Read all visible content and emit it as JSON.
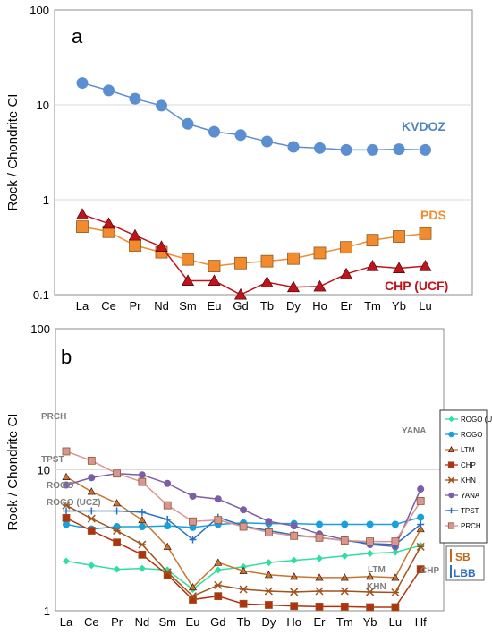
{
  "chart_data": [
    {
      "type": "line",
      "panel_label": "a",
      "ylabel": "Rock / Chondrite CI",
      "yscale": "log",
      "ylim": [
        0.1,
        100
      ],
      "yticks": [
        "0.1",
        "1",
        "10",
        "100"
      ],
      "grid": true,
      "categories": [
        "La",
        "Ce",
        "Pr",
        "Nd",
        "Sm",
        "Eu",
        "Gd",
        "Tb",
        "Dy",
        "Ho",
        "Er",
        "Tm",
        "Yb",
        "Lu"
      ],
      "series": [
        {
          "name": "KVDOZ",
          "color": "#5b8fd1",
          "marker": "circle",
          "values": [
            17,
            14.2,
            11.6,
            9.8,
            6.3,
            5.2,
            4.8,
            4.1,
            3.6,
            3.5,
            3.35,
            3.35,
            3.4,
            3.35
          ]
        },
        {
          "name": "PDS",
          "color": "#f28a2e",
          "marker": "square",
          "values": [
            0.52,
            0.46,
            0.33,
            0.28,
            0.235,
            0.2,
            0.215,
            0.225,
            0.24,
            0.275,
            0.315,
            0.375,
            0.41,
            0.44
          ]
        },
        {
          "name": "CHP (UCF)",
          "color": "#c0141c",
          "marker": "triangle",
          "values": [
            0.7,
            0.56,
            0.42,
            0.32,
            0.14,
            0.14,
            0.1,
            0.135,
            0.12,
            0.122,
            0.165,
            0.2,
            0.19,
            0.2
          ]
        }
      ],
      "series_labels": [
        "KVDOZ",
        "PDS",
        "CHP (UCF)"
      ]
    },
    {
      "type": "line",
      "panel_label": "b",
      "ylabel": "Rock / Chondrite CI",
      "yscale": "log",
      "ylim": [
        1,
        100
      ],
      "yticks": [
        "1",
        "10",
        "100"
      ],
      "grid": true,
      "categories": [
        "La",
        "Ce",
        "Pr",
        "Nd",
        "Sm",
        "Eu",
        "Gd",
        "Tb",
        "Dy",
        "Ho",
        "Er",
        "Tm",
        "Yb",
        "Lu",
        "Hf"
      ],
      "series": [
        {
          "name": "ROGO (UCZ)",
          "color": "#2ee0a0",
          "marker": "diamond",
          "values": [
            2.25,
            2.1,
            1.97,
            2.0,
            1.95,
            1.42,
            1.95,
            2.05,
            2.2,
            2.28,
            2.35,
            2.45,
            2.55,
            2.6,
            2.9
          ]
        },
        {
          "name": "ROGO",
          "color": "#19a0dc",
          "marker": "circle",
          "values": [
            4.1,
            3.8,
            3.95,
            3.95,
            4.0,
            3.9,
            4.1,
            4.2,
            4.15,
            4.15,
            4.1,
            4.1,
            4.1,
            4.1,
            4.6
          ]
        },
        {
          "name": "LTM",
          "color": "#c6762e",
          "marker": "triangle",
          "values": [
            8.9,
            7.0,
            5.8,
            4.4,
            2.85,
            1.47,
            2.2,
            1.92,
            1.8,
            1.75,
            1.72,
            1.72,
            1.75,
            1.72,
            3.8
          ]
        },
        {
          "name": "CHP",
          "color": "#b5300c",
          "marker": "square",
          "values": [
            4.55,
            3.7,
            3.05,
            2.5,
            1.8,
            1.2,
            1.27,
            1.12,
            1.1,
            1.08,
            1.07,
            1.07,
            1.06,
            1.06,
            1.97
          ]
        },
        {
          "name": "KHN",
          "color": "#a0521c",
          "marker": "star",
          "values": [
            5.6,
            4.5,
            3.7,
            2.95,
            1.88,
            1.27,
            1.52,
            1.42,
            1.38,
            1.36,
            1.38,
            1.38,
            1.36,
            1.35,
            2.85
          ]
        },
        {
          "name": "YANA",
          "color": "#7a5fa8",
          "marker": "circle",
          "values": [
            7.8,
            8.8,
            9.4,
            9.2,
            8.0,
            6.5,
            6.2,
            5.2,
            4.3,
            4.0,
            3.5,
            3.2,
            2.95,
            2.85,
            7.3
          ]
        },
        {
          "name": "TPST",
          "color": "#2a6fc0",
          "marker": "plus",
          "values": [
            5.1,
            5.1,
            5.1,
            5.0,
            4.45,
            3.2,
            4.6,
            4.0,
            3.7,
            3.45,
            3.3,
            3.15,
            3.0,
            2.95,
            4.1
          ]
        },
        {
          "name": "PRCH",
          "color": "#d99594",
          "marker": "square",
          "values": [
            13.5,
            11.6,
            9.4,
            8.2,
            5.6,
            4.3,
            4.4,
            3.95,
            3.6,
            3.4,
            3.3,
            3.15,
            3.1,
            3.1,
            6.0
          ]
        }
      ],
      "curve_labels": [
        "PRCH",
        "TPST",
        "ROGO",
        "ROGO (UCZ)",
        "YANA",
        "LTM",
        "KHN",
        "CHP"
      ],
      "legend": {
        "placement": "right",
        "entries": [
          "ROGO (UCZ)",
          "ROGO",
          "LTM",
          "CHP",
          "KHN",
          "YANA",
          "TPST",
          "PRCH"
        ]
      },
      "groups": [
        {
          "label": "SB",
          "color": "#c0671c"
        },
        {
          "label": "LBB",
          "color": "#2a6fc0"
        }
      ]
    }
  ]
}
